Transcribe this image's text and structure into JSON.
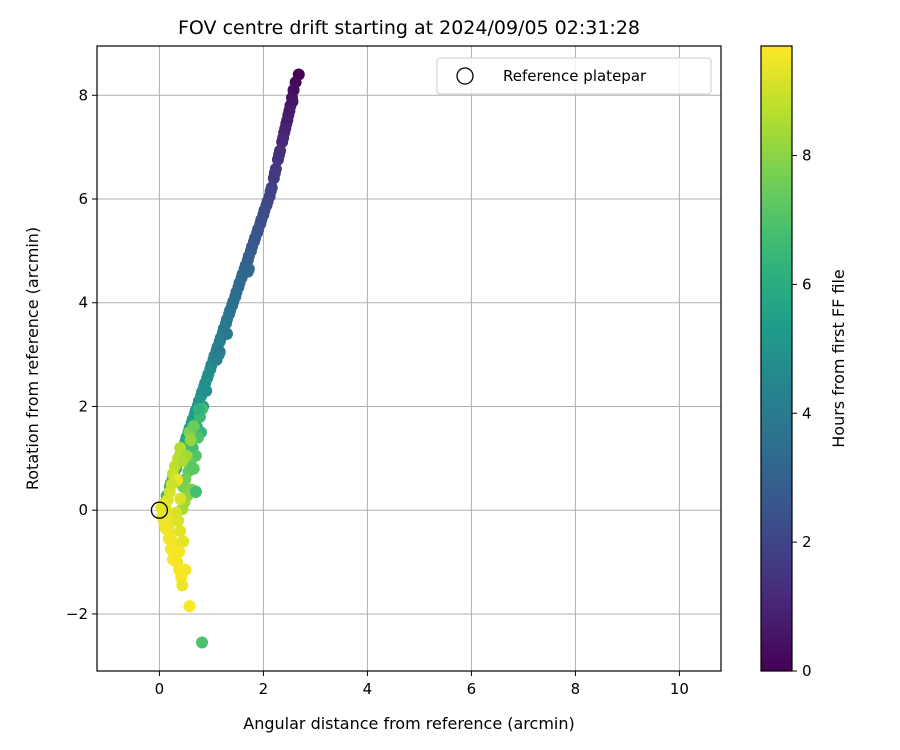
{
  "chart_data": {
    "type": "scatter",
    "title": "FOV centre drift starting at 2024/09/05 02:31:28",
    "xlabel": "Angular distance from reference (arcmin)",
    "ylabel": "Rotation from reference (arcmin)",
    "xlim": [
      -1.2,
      10.8
    ],
    "ylim": [
      -3.1,
      8.95
    ],
    "xticks": [
      0,
      2,
      4,
      6,
      8,
      10
    ],
    "yticks": [
      -2,
      0,
      2,
      4,
      6,
      8
    ],
    "grid": true,
    "colormap": "viridis",
    "colorbar": {
      "label": "Hours from first FF file",
      "range": [
        0,
        9.7
      ],
      "ticks": [
        0,
        2,
        4,
        6,
        8
      ]
    },
    "legend": {
      "position": "top-right",
      "entries": [
        {
          "label": "Reference platepar",
          "marker": "open-circle",
          "x": 0,
          "y": 0
        }
      ]
    },
    "series": [
      {
        "points": [
          [
            2.68,
            8.4,
            0.05
          ],
          [
            2.62,
            8.25,
            0.18
          ],
          [
            2.58,
            8.1,
            0.32
          ],
          [
            2.55,
            7.95,
            0.45
          ],
          [
            2.52,
            7.8,
            0.58
          ],
          [
            2.48,
            7.62,
            0.72
          ],
          [
            2.44,
            7.45,
            0.86
          ],
          [
            2.4,
            7.28,
            1.0
          ],
          [
            2.36,
            7.1,
            1.14
          ],
          [
            2.32,
            6.93,
            1.28
          ],
          [
            2.28,
            6.76,
            1.42
          ],
          [
            2.24,
            6.58,
            1.56
          ],
          [
            2.2,
            6.4,
            1.7
          ],
          [
            2.16,
            6.22,
            1.84
          ],
          [
            2.12,
            6.05,
            1.98
          ],
          [
            2.06,
            5.88,
            2.12
          ],
          [
            2.0,
            5.7,
            2.26
          ],
          [
            1.94,
            5.52,
            2.4
          ],
          [
            1.88,
            5.35,
            2.54
          ],
          [
            1.82,
            5.18,
            2.68
          ],
          [
            1.76,
            5.0,
            2.82
          ],
          [
            1.7,
            4.82,
            2.96
          ],
          [
            1.64,
            4.65,
            3.1
          ],
          [
            1.58,
            4.48,
            3.24
          ],
          [
            1.52,
            4.3,
            3.38
          ],
          [
            1.46,
            4.12,
            3.52
          ],
          [
            1.4,
            3.95,
            3.66
          ],
          [
            1.34,
            3.78,
            3.8
          ],
          [
            1.28,
            3.6,
            3.94
          ],
          [
            1.22,
            3.42,
            4.08
          ],
          [
            1.16,
            3.25,
            4.22
          ],
          [
            1.1,
            3.08,
            4.36
          ],
          [
            1.04,
            2.9,
            4.5
          ],
          [
            0.98,
            2.72,
            4.64
          ],
          [
            0.92,
            2.55,
            4.78
          ],
          [
            0.86,
            2.38,
            4.92
          ],
          [
            0.8,
            2.2,
            5.06
          ],
          [
            0.74,
            2.02,
            5.2
          ],
          [
            0.68,
            1.85,
            5.34
          ],
          [
            0.62,
            1.68,
            5.48
          ],
          [
            0.56,
            1.5,
            5.62
          ],
          [
            0.5,
            1.32,
            5.76
          ],
          [
            0.44,
            1.15,
            5.9
          ],
          [
            0.38,
            0.98,
            6.04
          ],
          [
            0.32,
            0.8,
            6.18
          ],
          [
            0.26,
            0.62,
            6.32
          ],
          [
            0.2,
            0.45,
            6.46
          ],
          [
            0.14,
            0.28,
            6.6
          ],
          [
            0.1,
            0.1,
            6.74
          ],
          [
            2.56,
            7.88,
            0.55
          ],
          [
            2.5,
            7.7,
            0.68
          ],
          [
            2.46,
            7.52,
            0.8
          ],
          [
            2.42,
            7.36,
            0.95
          ],
          [
            2.38,
            7.18,
            1.08
          ],
          [
            2.3,
            6.85,
            1.35
          ],
          [
            2.22,
            6.5,
            1.62
          ],
          [
            2.14,
            6.15,
            1.9
          ],
          [
            2.08,
            5.95,
            2.05
          ],
          [
            2.02,
            5.78,
            2.2
          ],
          [
            1.96,
            5.6,
            2.33
          ],
          [
            1.9,
            5.42,
            2.48
          ],
          [
            1.84,
            5.25,
            2.62
          ],
          [
            1.78,
            5.08,
            2.75
          ],
          [
            1.72,
            4.9,
            2.9
          ],
          [
            1.66,
            4.72,
            3.03
          ],
          [
            1.6,
            4.55,
            3.18
          ],
          [
            1.54,
            4.38,
            3.3
          ],
          [
            1.48,
            4.2,
            3.45
          ],
          [
            1.42,
            4.02,
            3.58
          ],
          [
            1.36,
            3.85,
            3.73
          ],
          [
            1.3,
            3.68,
            3.87
          ],
          [
            1.24,
            3.5,
            4.0
          ],
          [
            1.18,
            3.32,
            4.15
          ],
          [
            1.12,
            3.15,
            4.28
          ],
          [
            1.06,
            2.98,
            4.43
          ],
          [
            1.0,
            2.8,
            4.57
          ],
          [
            0.94,
            2.62,
            4.7
          ],
          [
            0.88,
            2.45,
            4.85
          ],
          [
            0.82,
            2.28,
            4.98
          ],
          [
            0.76,
            2.1,
            5.13
          ],
          [
            0.7,
            1.92,
            5.27
          ],
          [
            0.64,
            1.75,
            5.4
          ],
          [
            0.58,
            1.58,
            5.55
          ],
          [
            0.52,
            1.4,
            5.68
          ],
          [
            0.46,
            1.22,
            5.83
          ],
          [
            0.4,
            1.05,
            5.97
          ],
          [
            0.34,
            0.88,
            6.1
          ],
          [
            0.28,
            0.7,
            6.25
          ],
          [
            0.22,
            0.52,
            6.38
          ],
          [
            1.16,
            3.05,
            4.0
          ],
          [
            1.14,
            3.0,
            4.05
          ],
          [
            1.7,
            4.6,
            3.2
          ],
          [
            1.72,
            4.65,
            3.15
          ],
          [
            1.3,
            3.4,
            3.9
          ],
          [
            1.1,
            2.9,
            4.3
          ],
          [
            0.9,
            2.3,
            4.8
          ],
          [
            0.84,
            2.0,
            5.3
          ],
          [
            0.82,
            1.95,
            6.8
          ],
          [
            0.78,
            1.8,
            6.6
          ],
          [
            0.72,
            1.6,
            5.9
          ],
          [
            0.8,
            1.5,
            6.4
          ],
          [
            0.74,
            1.4,
            6.9
          ],
          [
            0.64,
            1.2,
            6.7
          ],
          [
            0.7,
            1.05,
            7.1
          ],
          [
            0.6,
            0.9,
            7.3
          ],
          [
            0.56,
            0.75,
            7.4
          ],
          [
            0.5,
            0.6,
            7.6
          ],
          [
            0.46,
            0.45,
            7.7
          ],
          [
            0.66,
            0.8,
            7.2
          ],
          [
            0.62,
            0.4,
            7.9
          ],
          [
            0.7,
            0.36,
            6.9
          ],
          [
            0.54,
            0.28,
            8.0
          ],
          [
            0.48,
            0.15,
            8.2
          ],
          [
            0.44,
            0.02,
            8.4
          ],
          [
            0.4,
            1.2,
            8.6
          ],
          [
            0.36,
            1.0,
            8.7
          ],
          [
            0.3,
            0.85,
            8.8
          ],
          [
            0.26,
            0.7,
            8.9
          ],
          [
            0.34,
            0.58,
            9.4
          ],
          [
            0.24,
            0.5,
            9.0
          ],
          [
            0.2,
            0.35,
            9.1
          ],
          [
            0.16,
            0.2,
            9.2
          ],
          [
            0.12,
            0.05,
            9.3
          ],
          [
            0.1,
            -0.05,
            9.35
          ],
          [
            0.14,
            -0.18,
            9.4
          ],
          [
            0.18,
            -0.3,
            9.45
          ],
          [
            0.2,
            -0.45,
            9.5
          ],
          [
            0.24,
            -0.58,
            9.55
          ],
          [
            0.28,
            -0.7,
            9.5
          ],
          [
            0.3,
            -0.85,
            9.45
          ],
          [
            0.34,
            -1.0,
            9.4
          ],
          [
            0.38,
            -1.15,
            9.55
          ],
          [
            0.42,
            -1.3,
            9.6
          ],
          [
            0.44,
            -1.45,
            9.5
          ],
          [
            0.46,
            -0.6,
            9.3
          ],
          [
            0.4,
            -0.4,
            9.25
          ],
          [
            0.36,
            -0.2,
            9.2
          ],
          [
            0.32,
            -0.05,
            9.15
          ],
          [
            0.26,
            -0.95,
            9.6
          ],
          [
            0.22,
            -0.75,
            9.58
          ],
          [
            0.18,
            -0.55,
            9.55
          ],
          [
            0.12,
            -0.35,
            9.52
          ],
          [
            0.08,
            -0.2,
            9.48
          ],
          [
            0.06,
            -0.1,
            9.42
          ],
          [
            0.04,
            0.05,
            9.38
          ],
          [
            0.08,
            0.12,
            9.33
          ],
          [
            0.4,
            0.22,
            9.2
          ],
          [
            0.38,
            -0.8,
            9.55
          ],
          [
            0.44,
            -1.15,
            9.62
          ],
          [
            0.5,
            -1.15,
            9.58
          ],
          [
            0.58,
            -1.85,
            9.65
          ],
          [
            0.82,
            -2.55,
            6.9
          ],
          [
            0.7,
            0.35,
            6.8
          ],
          [
            0.52,
            1.05,
            8.3
          ],
          [
            0.58,
            1.5,
            7.8
          ],
          [
            0.66,
            1.62,
            7.5
          ],
          [
            0.76,
            1.95,
            6.2
          ],
          [
            0.6,
            1.35,
            8.1
          ],
          [
            0.44,
            0.95,
            8.5
          ]
        ]
      }
    ]
  }
}
